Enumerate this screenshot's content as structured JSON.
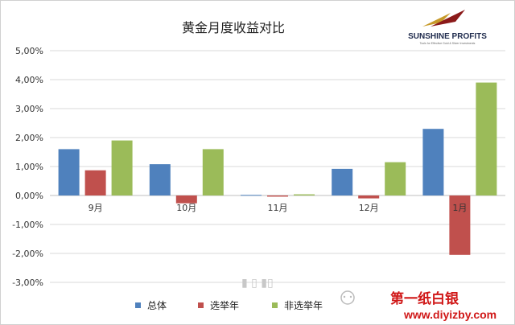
{
  "chart_data": {
    "type": "bar",
    "title": "黄金月度收益对比",
    "categories": [
      "9月",
      "10月",
      "11月",
      "12月",
      "1月"
    ],
    "series": [
      {
        "name": "总体",
        "color": "#4f81bd",
        "values": [
          1.6,
          1.08,
          0.02,
          0.92,
          2.3
        ]
      },
      {
        "name": "选举年",
        "color": "#c0504d",
        "values": [
          0.87,
          -0.27,
          -0.04,
          -0.1,
          -2.05
        ]
      },
      {
        "name": "非选举年",
        "color": "#9bbb59",
        "values": [
          1.9,
          1.6,
          0.04,
          1.15,
          3.9
        ]
      }
    ],
    "y_ticks": [
      "5,00%",
      "4,00%",
      "3,00%",
      "2,00%",
      "1,00%",
      "0,00%",
      "-1,00%",
      "-2,00%",
      "-3,00%"
    ],
    "ylim": [
      -3,
      5
    ],
    "grid": true,
    "legend_position": "bottom"
  },
  "logo": {
    "name": "SUNSHINE PROFITS",
    "tagline": "Tools for Effective Gold & Silver Investments"
  },
  "watermark": {
    "name": "第一纸白银",
    "url": "www.diyizby.com"
  }
}
